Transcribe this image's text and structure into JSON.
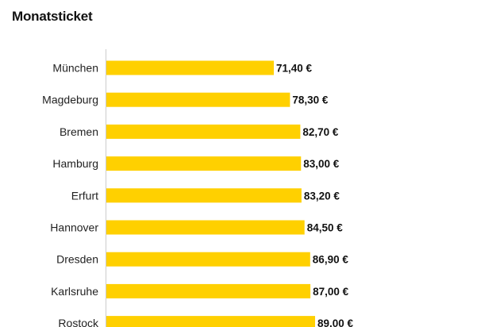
{
  "colors": {
    "bar": "#FFD000",
    "axis": "#cccccc",
    "text": "#111111"
  },
  "chart_data": {
    "type": "bar",
    "orientation": "horizontal",
    "title": "Monatsticket",
    "categories": [
      "München",
      "Magdeburg",
      "Bremen",
      "Hamburg",
      "Erfurt",
      "Hannover",
      "Dresden",
      "Karlsruhe",
      "Rostock"
    ],
    "values": [
      71.4,
      78.3,
      82.7,
      83.0,
      83.2,
      84.5,
      86.9,
      87.0,
      89.0
    ],
    "value_labels": [
      "71,40 €",
      "78,30 €",
      "82,70 €",
      "83,00 €",
      "83,20 €",
      "84,50 €",
      "86,90 €",
      "87,00 €",
      "89,00 €"
    ],
    "xlabel": "",
    "ylabel": "",
    "grid": false,
    "legend": "none"
  }
}
